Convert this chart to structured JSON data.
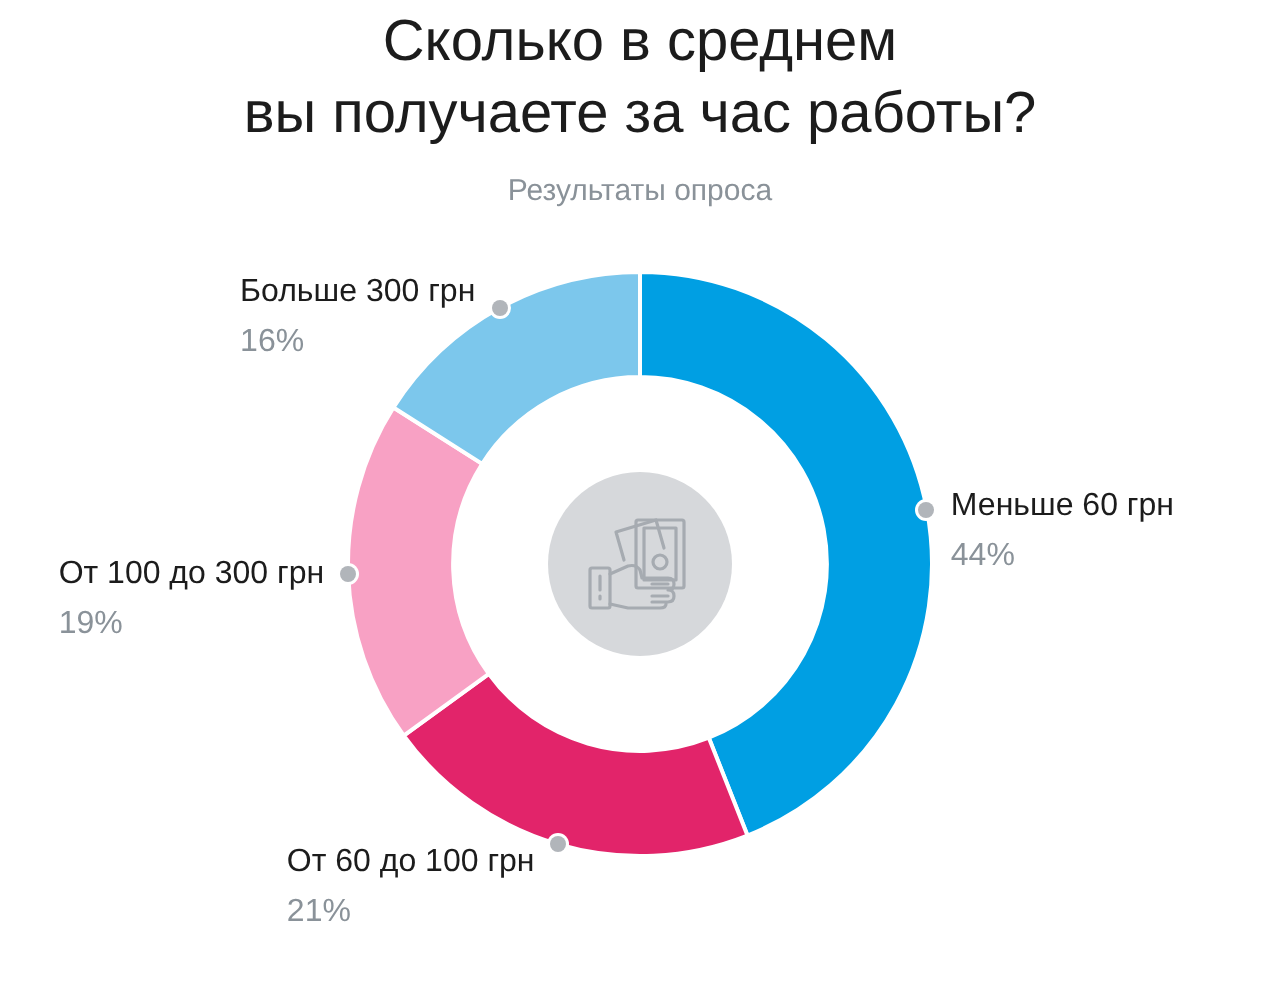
{
  "chart_data": {
    "type": "donut",
    "title": "Сколько в среднем\nвы получаете за час работы?",
    "subtitle": "Результаты опроса",
    "categories": [
      "Меньше 60 грн",
      "От 60 до 100 грн",
      "От 100 до 300 грн",
      "Больше 300 грн"
    ],
    "values": [
      44,
      21,
      19,
      16
    ],
    "colors": [
      "#009fe3",
      "#e2246a",
      "#f8a1c4",
      "#7cc7ec"
    ],
    "value_labels": [
      "44%",
      "21%",
      "19%",
      "16%"
    ]
  }
}
